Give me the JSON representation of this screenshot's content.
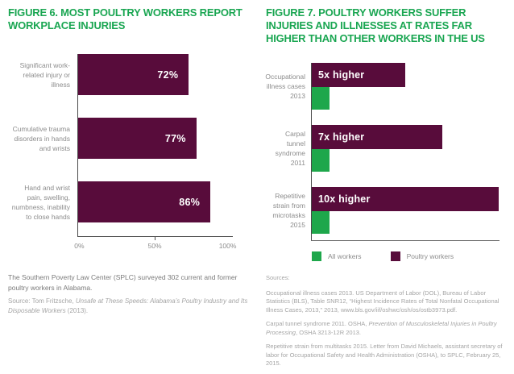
{
  "colors": {
    "title_green": "#1aa652",
    "bar_maroon": "#580c3b",
    "bar_green": "#1ea74b",
    "axis_gray": "#4a4a4a",
    "label_gray": "#8c8c8c",
    "note_gray": "#7a7a7a",
    "source_gray": "#a5a5a5"
  },
  "figure6": {
    "title": "FIGURE 6. MOST POULTRY WORKERS REPORT WORKPLACE INJURIES",
    "note": "The Southern Poverty Law Center (SPLC) surveyed 302 current and former poultry workers in Alabama.",
    "source_parts": [
      {
        "text": "Source: Tom Fritzsche, ",
        "italic": false
      },
      {
        "text": "Unsafe at These Speeds: Alabama’s Poultry Industry and Its Disposable Workers",
        "italic": true
      },
      {
        "text": " (2013).",
        "italic": false
      }
    ]
  },
  "figure7": {
    "title": "FIGURE 7. POULTRY WORKERS SUFFER INJURIES AND ILLNESSES AT RATES FAR HIGHER THAN OTHER WORKERS IN THE US",
    "legend": [
      {
        "label": "All workers",
        "color": "#1ea74b"
      },
      {
        "label": "Poultry workers",
        "color": "#580c3b"
      }
    ],
    "sources_heading": "Sources:",
    "sources": [
      [
        {
          "text": "Occupational illness cases 2013. US Department of Labor (DOL), Bureau of Labor Statistics (BLS), Table SNR12, “Highest Incidence Rates of Total Nonfatal Occupational Illness Cases, 2013,” 2013, www.bls.gov/iif/oshwc/osh/os/ostb3973.pdf.",
          "italic": false
        }
      ],
      [
        {
          "text": "Carpal tunnel syndrome 2011. OSHA, ",
          "italic": false
        },
        {
          "text": "Prevention of Musculoskeletal Injuries in Poultry Processing",
          "italic": true
        },
        {
          "text": ", OSHA 3213-12R 2013.",
          "italic": false
        }
      ],
      [
        {
          "text": "Repetitive strain from multitasks 2015. Letter from David Michaels, assistant secretary of labor for Occupational Safety and Health Administration (OSHA), to SPLC, February 25, 2015.",
          "italic": false
        }
      ]
    ]
  },
  "chart_data": [
    {
      "type": "bar",
      "orientation": "horizontal",
      "title": "FIGURE 6. MOST POULTRY WORKERS REPORT WORKPLACE INJURIES",
      "categories": [
        "Significant work-related injury or illness",
        "Cumulative trauma disorders in hands and wrists",
        "Hand and wrist pain, swelling, numbness, inability to close hands"
      ],
      "values": [
        72,
        77,
        86
      ],
      "data_labels": [
        "72%",
        "77%",
        "86%"
      ],
      "xlim": [
        0,
        100
      ],
      "x_tick_labels": [
        "0%",
        "50%",
        "100%"
      ],
      "bar_color": "#580c3b",
      "grid": false
    },
    {
      "type": "bar",
      "orientation": "horizontal",
      "title": "FIGURE 7. POULTRY WORKERS SUFFER INJURIES AND ILLNESSES AT RATES FAR HIGHER THAN OTHER WORKERS IN THE US",
      "categories": [
        "Occupational illness cases 2013",
        "Carpal tunnel syndrome 2011",
        "Repetitive strain from microtasks 2015"
      ],
      "series": [
        {
          "name": "Poultry workers",
          "values": [
            5,
            7,
            10
          ],
          "color": "#580c3b"
        },
        {
          "name": "All workers",
          "values": [
            1,
            1,
            1
          ],
          "color": "#1ea74b"
        }
      ],
      "annotations": [
        "5x higher",
        "7x higher",
        "10x higher"
      ],
      "xlim": [
        0,
        10
      ],
      "grid": false,
      "legend_position": "bottom"
    }
  ]
}
